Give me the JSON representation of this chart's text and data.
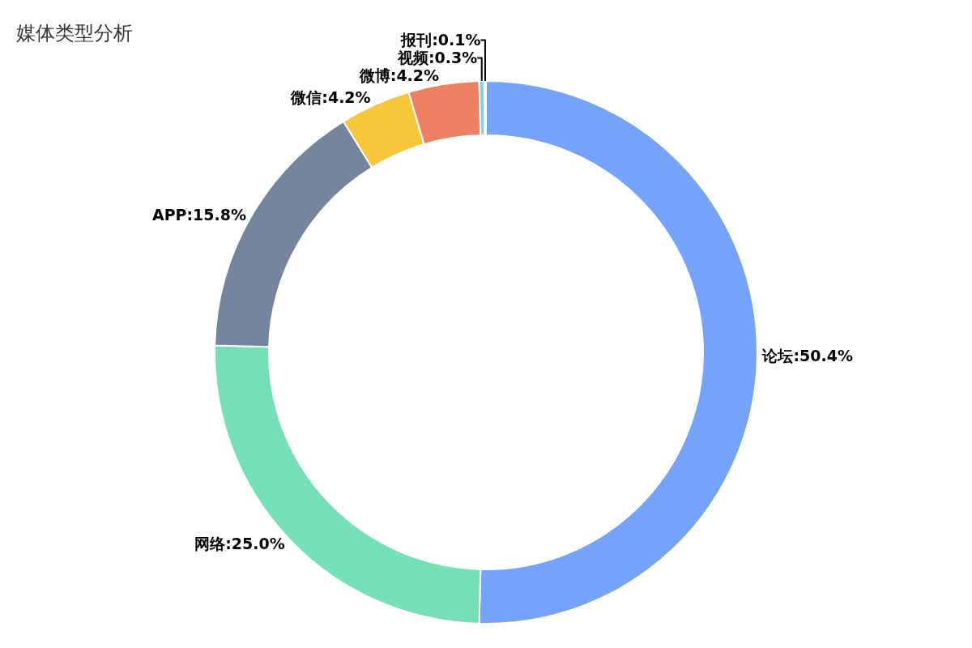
{
  "chart_data": {
    "type": "donut",
    "title": "媒体类型分析",
    "categories": [
      "论坛",
      "网络",
      "APP",
      "微信",
      "微博",
      "视频",
      "报刊"
    ],
    "values": [
      50.4,
      25.0,
      15.8,
      4.2,
      4.2,
      0.3,
      0.1
    ],
    "value_labels": [
      "50.4%",
      "25.0%",
      "15.8%",
      "4.2%",
      "4.2%",
      "0.3%",
      "0.1%"
    ],
    "colors": [
      "#75a2fa",
      "#75dfb5",
      "#7585a0",
      "#f7c63a",
      "#ed7f63",
      "#7fd0ee",
      "#9d7fd2"
    ],
    "legend": false
  }
}
